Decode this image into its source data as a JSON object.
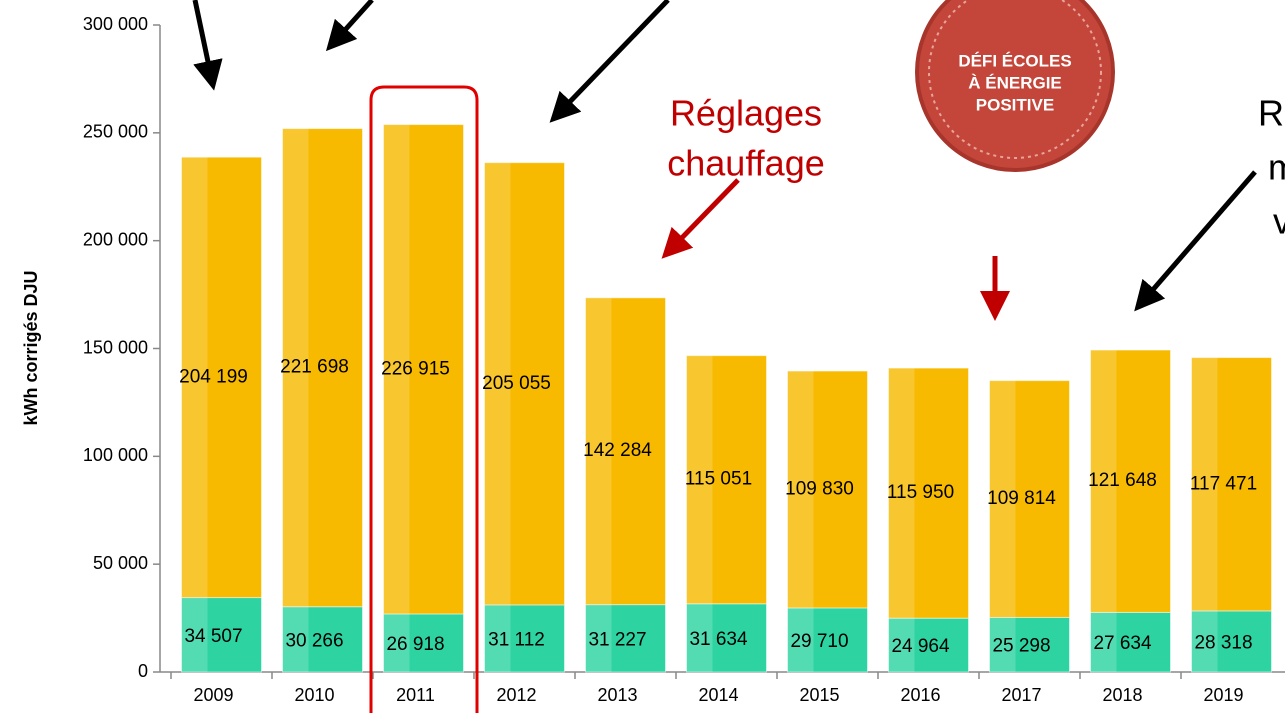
{
  "chart_data": {
    "type": "bar",
    "stacked": true,
    "y_label": "kWh corrigés DJU",
    "categories": [
      "2009",
      "2010",
      "2011",
      "2012",
      "2013",
      "2014",
      "2015",
      "2016",
      "2017",
      "2018",
      "2019"
    ],
    "series": [
      {
        "color": "#2ed3a2",
        "values": [
          34507,
          30266,
          26918,
          31112,
          31227,
          31634,
          29710,
          24964,
          25298,
          27634,
          28318
        ],
        "value_labels": [
          "34 507",
          "30 266",
          "26 918",
          "31 112",
          "31 227",
          "31 634",
          "29 710",
          "24 964",
          "25 298",
          "27 634",
          "28 318"
        ]
      },
      {
        "color": "#f7ba00",
        "values": [
          204199,
          221698,
          226915,
          205055,
          142284,
          115051,
          109830,
          115950,
          109814,
          121648,
          117471
        ],
        "value_labels": [
          "204 199",
          "221 698",
          "226 915",
          "205 055",
          "142 284",
          "115 051",
          "109 830",
          "115 950",
          "109 814",
          "121 648",
          "117 471"
        ]
      }
    ],
    "ylim": [
      0,
      300000
    ],
    "yticks": [
      {
        "value": 0,
        "label": "0"
      },
      {
        "value": 50000,
        "label": "50 000"
      },
      {
        "value": 100000,
        "label": "100 000"
      },
      {
        "value": 150000,
        "label": "150 000"
      },
      {
        "value": 200000,
        "label": "200 000"
      },
      {
        "value": 250000,
        "label": "250 000"
      },
      {
        "value": 300000,
        "label": "300 000"
      }
    ],
    "annotations": [
      "Réglages",
      "chauffage",
      "R",
      "m",
      "v"
    ],
    "badge": [
      "DÉFI ÉCOLES",
      "À ÉNERGIE",
      "POSITIVE"
    ]
  }
}
